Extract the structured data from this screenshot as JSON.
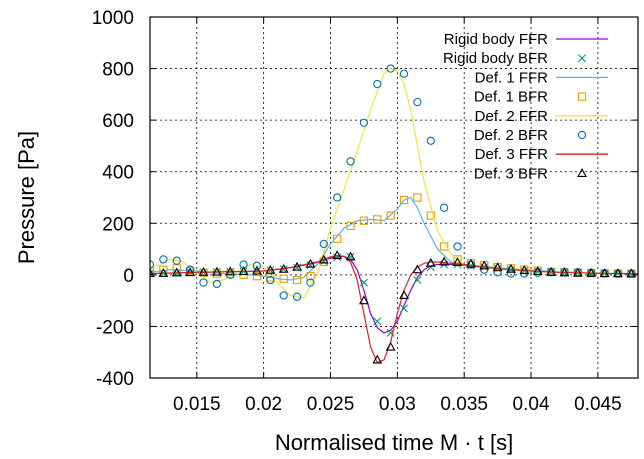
{
  "chart_data": {
    "type": "line",
    "xlabel": "Normalised time M  · t [s]",
    "ylabel": "Pressure [Pa]",
    "xlim": [
      0.0115,
      0.048
    ],
    "ylim": [
      -400,
      1000
    ],
    "xticks": [
      0.015,
      0.02,
      0.025,
      0.03,
      0.035,
      0.04,
      0.045
    ],
    "xtick_labels": [
      "0.015",
      "0.02",
      "0.025",
      "0.03",
      "0.035",
      "0.04",
      "0.045"
    ],
    "yticks": [
      -400,
      -200,
      0,
      200,
      400,
      600,
      800,
      1000
    ],
    "ytick_labels": [
      "-400",
      "-200",
      "0",
      "200",
      "400",
      "600",
      "800",
      "1000"
    ],
    "grid": true,
    "legend_position": "top-right",
    "series": [
      {
        "name": "Rigid body FFR",
        "kind": "line",
        "color": "#9400d3",
        "x": [
          0.0115,
          0.015,
          0.02,
          0.022,
          0.024,
          0.025,
          0.026,
          0.0265,
          0.027,
          0.0275,
          0.028,
          0.0285,
          0.029,
          0.0295,
          0.03,
          0.0305,
          0.031,
          0.0315,
          0.032,
          0.0325,
          0.033,
          0.034,
          0.035,
          0.036,
          0.038,
          0.04,
          0.042,
          0.045,
          0.048
        ],
        "y": [
          5,
          10,
          15,
          28,
          48,
          65,
          72,
          60,
          20,
          -60,
          -150,
          -205,
          -225,
          -215,
          -180,
          -120,
          -60,
          -10,
          20,
          35,
          40,
          40,
          38,
          32,
          22,
          15,
          10,
          6,
          4
        ]
      },
      {
        "name": "Rigid body BFR",
        "kind": "marker",
        "marker": "x",
        "color": "#009e73",
        "x": [
          0.0115,
          0.0125,
          0.0135,
          0.0145,
          0.0155,
          0.0165,
          0.0175,
          0.0185,
          0.0195,
          0.0205,
          0.0215,
          0.0225,
          0.0235,
          0.0245,
          0.0255,
          0.0265,
          0.0275,
          0.0285,
          0.0295,
          0.0305,
          0.0315,
          0.0325,
          0.0335,
          0.0345,
          0.0355,
          0.0365,
          0.0375,
          0.0385,
          0.0395,
          0.0405,
          0.0415,
          0.0425,
          0.0435,
          0.0445,
          0.0455,
          0.0465,
          0.0475
        ],
        "y": [
          5,
          6,
          8,
          9,
          10,
          11,
          12,
          13,
          15,
          18,
          22,
          28,
          38,
          52,
          68,
          70,
          -30,
          -180,
          -225,
          -130,
          -20,
          30,
          40,
          40,
          36,
          30,
          25,
          20,
          16,
          13,
          10,
          8,
          7,
          6,
          5,
          5,
          4
        ]
      },
      {
        "name": "Def. 1 FFR",
        "kind": "line",
        "color": "#56b4e9",
        "x": [
          0.0115,
          0.013,
          0.015,
          0.017,
          0.019,
          0.02,
          0.021,
          0.022,
          0.023,
          0.024,
          0.025,
          0.026,
          0.027,
          0.028,
          0.029,
          0.03,
          0.0305,
          0.031,
          0.0315,
          0.032,
          0.033,
          0.034,
          0.035,
          0.036,
          0.038,
          0.04,
          0.042,
          0.045,
          0.048
        ],
        "y": [
          10,
          20,
          15,
          5,
          0,
          -5,
          -15,
          -20,
          -10,
          40,
          120,
          180,
          210,
          215,
          210,
          255,
          290,
          300,
          260,
          200,
          100,
          50,
          40,
          35,
          25,
          18,
          12,
          8,
          5
        ]
      },
      {
        "name": "Def. 1 BFR",
        "kind": "marker",
        "marker": "square",
        "color": "#e69f00",
        "x": [
          0.0115,
          0.0125,
          0.0135,
          0.0145,
          0.0155,
          0.0165,
          0.0175,
          0.0185,
          0.0195,
          0.0205,
          0.0215,
          0.0225,
          0.0235,
          0.0245,
          0.0255,
          0.0265,
          0.0275,
          0.0285,
          0.0295,
          0.0305,
          0.0315,
          0.0325,
          0.0335,
          0.0345,
          0.0355,
          0.0365,
          0.0375,
          0.0385,
          0.0395,
          0.0405,
          0.0415,
          0.0425,
          0.0435,
          0.0445,
          0.0455,
          0.0465,
          0.0475
        ],
        "y": [
          10,
          20,
          25,
          15,
          8,
          5,
          3,
          0,
          -5,
          -10,
          -15,
          -20,
          -5,
          50,
          140,
          190,
          210,
          215,
          230,
          290,
          300,
          230,
          110,
          60,
          45,
          38,
          30,
          25,
          20,
          16,
          12,
          10,
          8,
          7,
          6,
          5,
          5
        ]
      },
      {
        "name": "Def. 2 FFR",
        "kind": "line",
        "color": "#f0e442",
        "x": [
          0.0115,
          0.013,
          0.014,
          0.015,
          0.016,
          0.017,
          0.018,
          0.019,
          0.02,
          0.021,
          0.022,
          0.023,
          0.024,
          0.025,
          0.026,
          0.027,
          0.028,
          0.029,
          0.0295,
          0.03,
          0.0305,
          0.031,
          0.0315,
          0.032,
          0.033,
          0.034,
          0.035,
          0.036,
          0.038,
          0.04,
          0.042,
          0.045,
          0.048
        ],
        "y": [
          20,
          60,
          50,
          10,
          -30,
          -20,
          10,
          40,
          30,
          -30,
          -80,
          -90,
          0,
          180,
          330,
          480,
          640,
          780,
          800,
          790,
          740,
          640,
          500,
          360,
          170,
          80,
          40,
          30,
          20,
          15,
          10,
          8,
          5
        ]
      },
      {
        "name": "Def. 2 BFR",
        "kind": "marker",
        "marker": "circle",
        "color": "#0072b2",
        "x": [
          0.0115,
          0.0125,
          0.0135,
          0.0145,
          0.0155,
          0.0165,
          0.0175,
          0.0185,
          0.0195,
          0.0205,
          0.0215,
          0.0225,
          0.0235,
          0.0245,
          0.0255,
          0.0265,
          0.0275,
          0.0285,
          0.0295,
          0.0305,
          0.0315,
          0.0325,
          0.0335,
          0.0345,
          0.0355,
          0.0365,
          0.0375,
          0.0385,
          0.0395,
          0.0405,
          0.0415,
          0.0425,
          0.0435,
          0.0445,
          0.0455,
          0.0465,
          0.0475
        ],
        "y": [
          40,
          60,
          55,
          20,
          -30,
          -35,
          0,
          40,
          35,
          -20,
          -80,
          -85,
          -30,
          120,
          300,
          440,
          590,
          740,
          800,
          780,
          670,
          520,
          260,
          110,
          40,
          20,
          10,
          5,
          5,
          8,
          10,
          12,
          10,
          8,
          6,
          5,
          5
        ]
      },
      {
        "name": "Def. 3 FFR",
        "kind": "line",
        "color": "#d62728",
        "x": [
          0.0115,
          0.015,
          0.02,
          0.022,
          0.024,
          0.025,
          0.0255,
          0.026,
          0.0265,
          0.027,
          0.0275,
          0.028,
          0.0285,
          0.029,
          0.0295,
          0.03,
          0.0305,
          0.031,
          0.0315,
          0.032,
          0.0325,
          0.033,
          0.034,
          0.035,
          0.036,
          0.038,
          0.04,
          0.042,
          0.045,
          0.048
        ],
        "y": [
          5,
          10,
          15,
          28,
          50,
          70,
          75,
          72,
          50,
          -20,
          -150,
          -280,
          -340,
          -330,
          -260,
          -150,
          -60,
          0,
          30,
          45,
          50,
          50,
          45,
          40,
          32,
          22,
          15,
          10,
          6,
          4
        ]
      },
      {
        "name": "Def. 3 BFR",
        "kind": "marker",
        "marker": "triangle",
        "color": "#000000",
        "x": [
          0.0115,
          0.0125,
          0.0135,
          0.0145,
          0.0155,
          0.0165,
          0.0175,
          0.0185,
          0.0195,
          0.0205,
          0.0215,
          0.0225,
          0.0235,
          0.0245,
          0.0255,
          0.0265,
          0.0275,
          0.0285,
          0.0295,
          0.0305,
          0.0315,
          0.0325,
          0.0335,
          0.0345,
          0.0355,
          0.0365,
          0.0375,
          0.0385,
          0.0395,
          0.0405,
          0.0415,
          0.0425,
          0.0435,
          0.0445,
          0.0455,
          0.0465,
          0.0475
        ],
        "y": [
          5,
          6,
          8,
          9,
          10,
          11,
          12,
          13,
          15,
          18,
          22,
          30,
          42,
          58,
          75,
          70,
          -100,
          -330,
          -280,
          -80,
          20,
          45,
          50,
          48,
          42,
          35,
          28,
          22,
          17,
          13,
          10,
          8,
          7,
          6,
          5,
          5,
          4
        ]
      }
    ]
  }
}
